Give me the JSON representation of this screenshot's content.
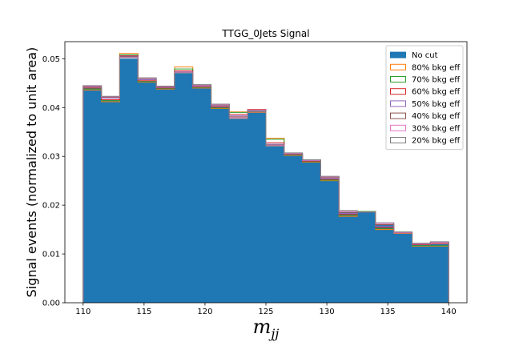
{
  "chart_data": {
    "type": "bar",
    "title": "TTGG_0Jets Signal",
    "xlabel_base": "m",
    "xlabel_sub": "jj",
    "ylabel": "Signal events (normalized to unit area)",
    "xlim": [
      108.5,
      141.5
    ],
    "ylim": [
      0.0,
      0.0535
    ],
    "x_ticks": [
      110,
      115,
      120,
      125,
      130,
      135,
      140
    ],
    "x_tick_labels": [
      "110",
      "115",
      "120",
      "125",
      "130",
      "135",
      "140"
    ],
    "y_ticks": [
      0.0,
      0.01,
      0.02,
      0.03,
      0.04,
      0.05
    ],
    "y_tick_labels": [
      "0.00",
      "0.01",
      "0.02",
      "0.03",
      "0.04",
      "0.05"
    ],
    "bin_edges": [
      110,
      111.5,
      113,
      114.5,
      116,
      117.5,
      119,
      120.5,
      122,
      123.5,
      125,
      126.5,
      128,
      129.5,
      131,
      132.5,
      134,
      135.5,
      137,
      138.5,
      140
    ],
    "legend_position": "upper right",
    "series": [
      {
        "name": "No cut",
        "style": "filled",
        "color": "#1f77b4",
        "values": [
          0.0441,
          0.0416,
          0.05,
          0.0455,
          0.044,
          0.047,
          0.0443,
          0.0402,
          0.0377,
          0.0391,
          0.032,
          0.0303,
          0.0289,
          0.0255,
          0.0185,
          0.0186,
          0.016,
          0.0145,
          0.012,
          0.012
        ]
      },
      {
        "name": "80% bkg eff",
        "style": "step",
        "color": "#ff7f0e",
        "values": [
          0.0436,
          0.0412,
          0.0511,
          0.0452,
          0.0438,
          0.0483,
          0.044,
          0.0398,
          0.0391,
          0.039,
          0.0337,
          0.0302,
          0.0288,
          0.025,
          0.0177,
          0.0187,
          0.015,
          0.0142,
          0.0116,
          0.0116
        ]
      },
      {
        "name": "70% bkg eff",
        "style": "step",
        "color": "#2ca02c",
        "values": [
          0.0438,
          0.0414,
          0.0508,
          0.0453,
          0.0439,
          0.0479,
          0.0441,
          0.0399,
          0.039,
          0.0392,
          0.0335,
          0.0303,
          0.0289,
          0.0251,
          0.0179,
          0.0187,
          0.0152,
          0.0145,
          0.0117,
          0.0117
        ]
      },
      {
        "name": "60% bkg eff",
        "style": "step",
        "color": "#d62728",
        "values": [
          0.044,
          0.0416,
          0.0506,
          0.0455,
          0.044,
          0.0475,
          0.0442,
          0.0401,
          0.0386,
          0.0396,
          0.0328,
          0.0304,
          0.029,
          0.0253,
          0.0181,
          0.0186,
          0.0154,
          0.0144,
          0.0119,
          0.0121
        ]
      },
      {
        "name": "50% bkg eff",
        "style": "step",
        "color": "#9467bd",
        "values": [
          0.0442,
          0.0419,
          0.0505,
          0.0457,
          0.0441,
          0.0473,
          0.0443,
          0.0403,
          0.0383,
          0.0394,
          0.0325,
          0.0305,
          0.0291,
          0.0255,
          0.0183,
          0.0186,
          0.0157,
          0.0143,
          0.012,
          0.0123
        ]
      },
      {
        "name": "40% bkg eff",
        "style": "step",
        "color": "#8c564b",
        "values": [
          0.0443,
          0.0421,
          0.0504,
          0.0459,
          0.0442,
          0.0472,
          0.0445,
          0.0405,
          0.0381,
          0.0392,
          0.0323,
          0.0306,
          0.0292,
          0.0257,
          0.0185,
          0.0186,
          0.016,
          0.0144,
          0.0121,
          0.0124
        ]
      },
      {
        "name": "30% bkg eff",
        "style": "step",
        "color": "#e377c2",
        "values": [
          0.0444,
          0.0422,
          0.0503,
          0.046,
          0.0443,
          0.0472,
          0.0446,
          0.0406,
          0.0379,
          0.0391,
          0.0322,
          0.0306,
          0.0292,
          0.0258,
          0.0187,
          0.0186,
          0.0162,
          0.0144,
          0.0121,
          0.0124
        ]
      },
      {
        "name": "20% bkg eff",
        "style": "step",
        "color": "#7f7f7f",
        "values": [
          0.0445,
          0.0423,
          0.0502,
          0.0461,
          0.0444,
          0.0471,
          0.0447,
          0.0407,
          0.0377,
          0.0391,
          0.0321,
          0.0307,
          0.0293,
          0.0259,
          0.0189,
          0.0186,
          0.0164,
          0.0145,
          0.0122,
          0.0125
        ]
      }
    ]
  }
}
